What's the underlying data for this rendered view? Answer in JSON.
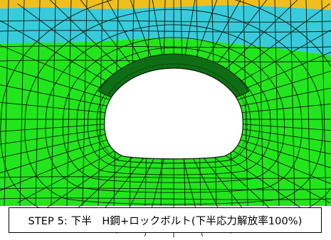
{
  "caption": "STEP 5: 下半　H鋼+ロックボルト(下半応力解放率100%)",
  "colors": {
    "ground": "#22e61c",
    "support_ring": "#0e6e14",
    "upper_layer": "#38cbdc",
    "top_layer": "#f0bf1c",
    "mesh_line": "#0b1a0b",
    "background": "#ffffff"
  }
}
